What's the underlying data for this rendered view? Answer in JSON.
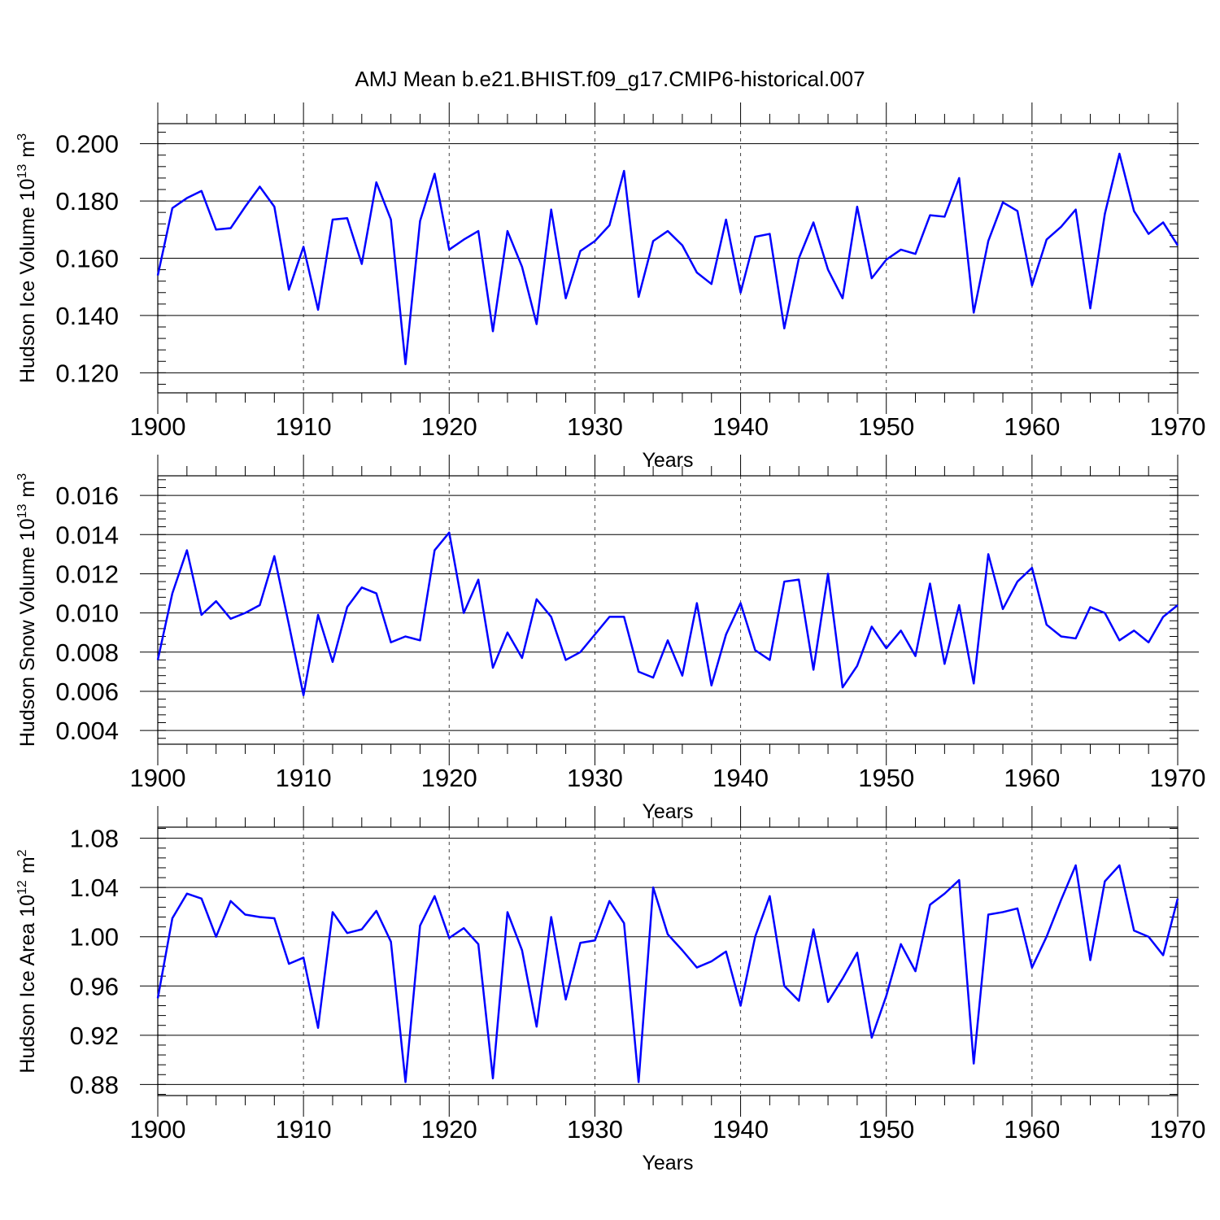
{
  "title": "AMJ Mean b.e21.BHIST.f09_g17.CMIP6-historical.007",
  "colors": {
    "series": "#0000ff",
    "axis": "#000000",
    "grid": "#444444"
  },
  "chart_data": [
    {
      "type": "line",
      "title": "AMJ Mean b.e21.BHIST.f09_g17.CMIP6-historical.007",
      "xlabel": "Years",
      "ylabel_main": "Hudson Ice Volume 10",
      "ylabel_exp": "13",
      "ylabel_unit": "m",
      "ylabel_unit_exp": "3",
      "xlim": [
        1900,
        1970
      ],
      "ylim": [
        0.113,
        0.207
      ],
      "yticks": [
        0.12,
        0.14,
        0.16,
        0.18,
        0.2
      ],
      "ytick_labels": [
        "0.120",
        "0.140",
        "0.160",
        "0.180",
        "0.200"
      ],
      "yminor_step": 0.004,
      "xticks": [
        1900,
        1910,
        1920,
        1930,
        1940,
        1950,
        1960,
        1970
      ],
      "xtick_labels": [
        "1900",
        "1910",
        "1920",
        "1930",
        "1940",
        "1950",
        "1960",
        "1970"
      ],
      "grid": "x-dashed",
      "series": [
        {
          "name": "Hudson Ice Volume",
          "x_start": 1900,
          "values": [
            0.154,
            0.1775,
            0.181,
            0.1835,
            0.17,
            0.1705,
            0.178,
            0.185,
            0.178,
            0.149,
            0.164,
            0.142,
            0.1735,
            0.174,
            0.158,
            0.1865,
            0.1735,
            0.123,
            0.173,
            0.1895,
            0.163,
            0.1665,
            0.1695,
            0.1345,
            0.1695,
            0.157,
            0.137,
            0.177,
            0.146,
            0.1625,
            0.166,
            0.1715,
            0.1905,
            0.1465,
            0.166,
            0.1695,
            0.1645,
            0.155,
            0.151,
            0.1735,
            0.148,
            0.1675,
            0.1685,
            0.1355,
            0.16,
            0.1725,
            0.156,
            0.146,
            0.178,
            0.153,
            0.1595,
            0.163,
            0.1615,
            0.175,
            0.1745,
            0.188,
            0.141,
            0.166,
            0.1795,
            0.1765,
            0.1505,
            0.1665,
            0.171,
            0.177,
            0.1425,
            0.1755,
            0.1965,
            0.1765,
            0.1685,
            0.1725,
            0.1645
          ]
        }
      ]
    },
    {
      "type": "line",
      "title": "",
      "xlabel": "Years",
      "ylabel_main": "Hudson Snow Volume 10",
      "ylabel_exp": "13",
      "ylabel_unit": "m",
      "ylabel_unit_exp": "3",
      "xlim": [
        1900,
        1970
      ],
      "ylim": [
        0.0033,
        0.017
      ],
      "yticks": [
        0.004,
        0.006,
        0.008,
        0.01,
        0.012,
        0.014,
        0.016
      ],
      "ytick_labels": [
        "0.004",
        "0.006",
        "0.008",
        "0.010",
        "0.012",
        "0.014",
        "0.016"
      ],
      "yminor_step": 0.0004,
      "xticks": [
        1900,
        1910,
        1920,
        1930,
        1940,
        1950,
        1960,
        1970
      ],
      "xtick_labels": [
        "1900",
        "1910",
        "1920",
        "1930",
        "1940",
        "1950",
        "1960",
        "1970"
      ],
      "grid": "x-dashed",
      "series": [
        {
          "name": "Hudson Snow Volume",
          "x_start": 1900,
          "values": [
            0.0076,
            0.011,
            0.0132,
            0.0099,
            0.0106,
            0.0097,
            0.01,
            0.0104,
            0.0129,
            0.0094,
            0.0058,
            0.0099,
            0.0075,
            0.0103,
            0.0113,
            0.011,
            0.0085,
            0.0088,
            0.0086,
            0.0132,
            0.0141,
            0.01,
            0.0117,
            0.0072,
            0.009,
            0.0077,
            0.0107,
            0.0098,
            0.0076,
            0.008,
            0.0089,
            0.0098,
            0.0098,
            0.007,
            0.0067,
            0.0086,
            0.0068,
            0.0105,
            0.0063,
            0.0089,
            0.0105,
            0.0081,
            0.0076,
            0.0116,
            0.0117,
            0.0071,
            0.012,
            0.0062,
            0.0073,
            0.0093,
            0.0082,
            0.0091,
            0.0078,
            0.0115,
            0.0074,
            0.0104,
            0.0064,
            0.013,
            0.0102,
            0.0116,
            0.0123,
            0.0094,
            0.0088,
            0.0087,
            0.0103,
            0.01,
            0.0086,
            0.0091,
            0.0085,
            0.0098,
            0.0104
          ]
        }
      ]
    },
    {
      "type": "line",
      "title": "",
      "xlabel": "Years",
      "ylabel_main": "Hudson Ice Area 10",
      "ylabel_exp": "12",
      "ylabel_unit": "m",
      "ylabel_unit_exp": "2",
      "xlim": [
        1900,
        1970
      ],
      "ylim": [
        0.871,
        1.089
      ],
      "yticks": [
        0.88,
        0.92,
        0.96,
        1.0,
        1.04,
        1.08
      ],
      "ytick_labels": [
        "0.88",
        "0.92",
        "0.96",
        "1.00",
        "1.04",
        "1.08"
      ],
      "yminor_step": 0.008,
      "xticks": [
        1900,
        1910,
        1920,
        1930,
        1940,
        1950,
        1960,
        1970
      ],
      "xtick_labels": [
        "1900",
        "1910",
        "1920",
        "1930",
        "1940",
        "1950",
        "1960",
        "1970"
      ],
      "grid": "x-dashed",
      "series": [
        {
          "name": "Hudson Ice Area",
          "x_start": 1900,
          "values": [
            0.95,
            1.015,
            1.035,
            1.031,
            1.0,
            1.029,
            1.018,
            1.016,
            1.015,
            0.978,
            0.983,
            0.926,
            1.02,
            1.003,
            1.006,
            1.021,
            0.996,
            0.882,
            1.009,
            1.033,
            0.999,
            1.007,
            0.994,
            0.885,
            1.02,
            0.989,
            0.927,
            1.016,
            0.949,
            0.995,
            0.997,
            1.029,
            1.011,
            0.882,
            1.04,
            1.002,
            0.989,
            0.975,
            0.98,
            0.988,
            0.944,
            1.0,
            1.033,
            0.96,
            0.948,
            1.006,
            0.947,
            0.966,
            0.987,
            0.918,
            0.952,
            0.994,
            0.972,
            1.026,
            1.035,
            1.046,
            0.897,
            1.018,
            1.02,
            1.023,
            0.975,
            1.0,
            1.03,
            1.058,
            0.981,
            1.045,
            1.058,
            1.005,
            1.0,
            0.985,
            1.031
          ]
        }
      ]
    }
  ]
}
